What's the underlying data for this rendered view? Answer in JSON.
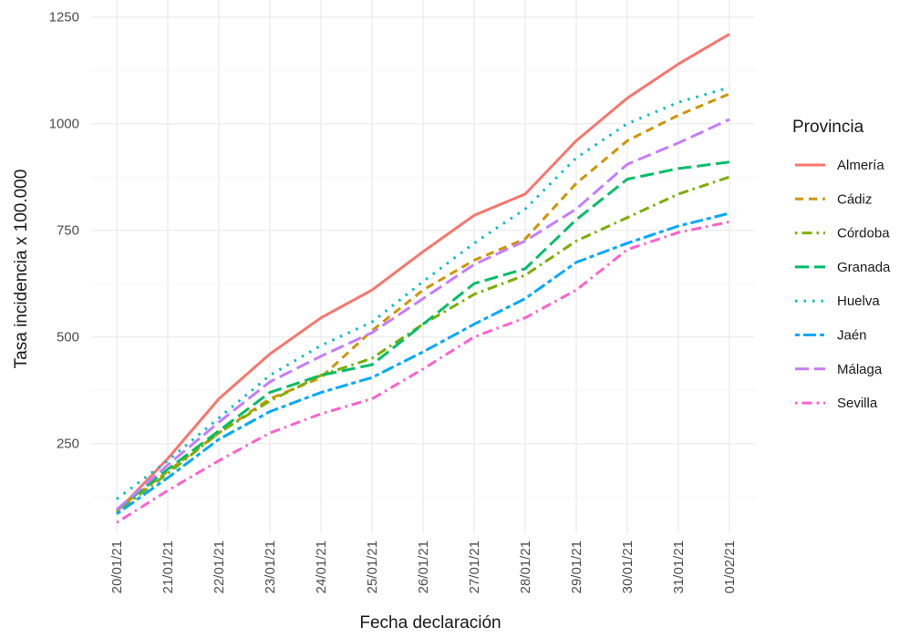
{
  "chart_data": {
    "type": "line",
    "xlabel": "Fecha declaración",
    "ylabel": "Tasa incidencia x 100.000",
    "categories": [
      "20/01/21",
      "21/01/21",
      "22/01/21",
      "23/01/21",
      "24/01/21",
      "25/01/21",
      "26/01/21",
      "27/01/21",
      "28/01/21",
      "29/01/21",
      "30/01/21",
      "31/01/21",
      "01/02/21"
    ],
    "y_ticks": [
      250,
      500,
      750,
      1000,
      1250
    ],
    "ylim": [
      40,
      1290
    ],
    "grid": true,
    "legend": {
      "title": "Provincia",
      "position": "right"
    },
    "series": [
      {
        "name": "Almería",
        "color": "#F8766D",
        "dash": "solid",
        "values": [
          90,
          215,
          355,
          460,
          545,
          610,
          700,
          785,
          835,
          960,
          1060,
          1140,
          1210
        ]
      },
      {
        "name": "Cádiz",
        "color": "#CD9600",
        "dash": "dashed",
        "values": [
          95,
          185,
          275,
          355,
          405,
          515,
          610,
          680,
          730,
          860,
          960,
          1020,
          1070
        ]
      },
      {
        "name": "Córdoba",
        "color": "#7CAE00",
        "dash": "dashdot",
        "values": [
          90,
          180,
          275,
          350,
          410,
          450,
          530,
          600,
          645,
          725,
          780,
          835,
          875
        ]
      },
      {
        "name": "Granada",
        "color": "#00BE67",
        "dash": "longdash",
        "values": [
          95,
          190,
          280,
          370,
          410,
          435,
          530,
          625,
          660,
          775,
          870,
          895,
          910
        ]
      },
      {
        "name": "Huelva",
        "color": "#00BFC4",
        "dash": "dotted",
        "values": [
          120,
          210,
          310,
          410,
          480,
          535,
          630,
          720,
          800,
          920,
          1000,
          1050,
          1085
        ]
      },
      {
        "name": "Jaén",
        "color": "#00A9FF",
        "dash": "twodash",
        "values": [
          85,
          170,
          260,
          325,
          370,
          405,
          465,
          530,
          590,
          675,
          720,
          760,
          790
        ]
      },
      {
        "name": "Málaga",
        "color": "#C77CFF",
        "dash": "longdash",
        "values": [
          95,
          200,
          300,
          395,
          455,
          510,
          590,
          670,
          725,
          800,
          905,
          955,
          1010
        ]
      },
      {
        "name": "Sevilla",
        "color": "#FF61CC",
        "dash": "dashdot",
        "values": [
          65,
          140,
          210,
          275,
          320,
          355,
          425,
          500,
          545,
          610,
          705,
          745,
          770
        ]
      }
    ]
  }
}
